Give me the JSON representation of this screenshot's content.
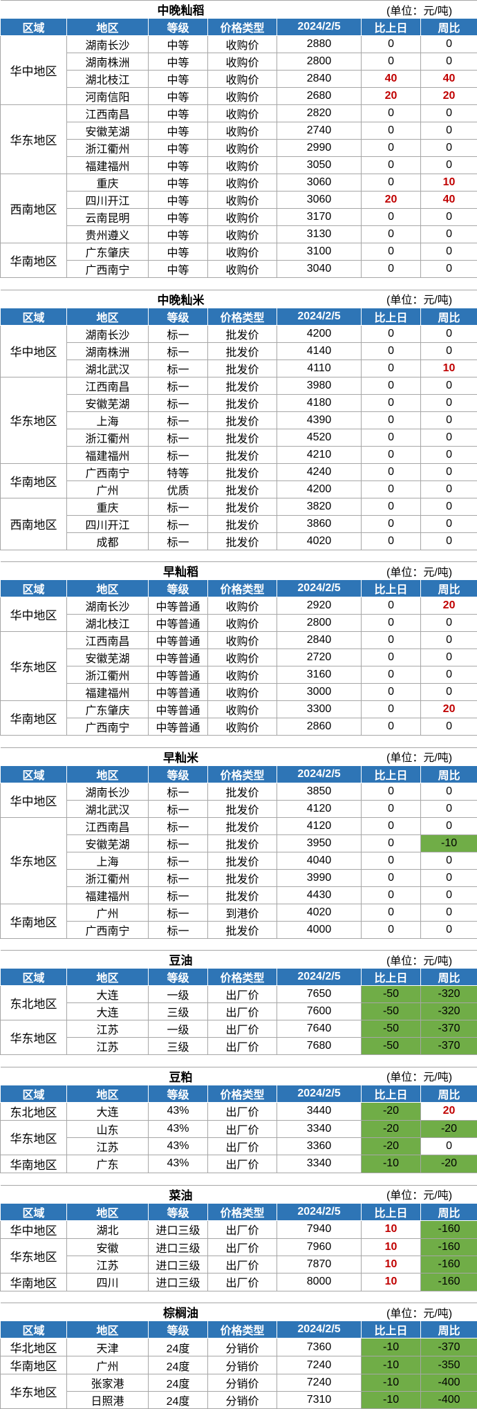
{
  "sections": [
    {
      "title": "中晚籼稻",
      "unit": "(单位：元/吨)",
      "header": [
        "区域",
        "地区",
        "等级",
        "价格类型",
        "2024/2/5",
        "比上日",
        "周比"
      ],
      "groups": [
        {
          "region": "华中地区",
          "rows": [
            [
              "湖南长沙",
              "中等",
              "收购价",
              2880,
              0,
              0
            ],
            [
              "湖南株洲",
              "中等",
              "收购价",
              2800,
              0,
              0
            ],
            [
              "湖北枝江",
              "中等",
              "收购价",
              2840,
              40,
              40
            ],
            [
              "河南信阳",
              "中等",
              "收购价",
              2680,
              20,
              20
            ]
          ]
        },
        {
          "region": "华东地区",
          "rows": [
            [
              "江西南昌",
              "中等",
              "收购价",
              2820,
              0,
              0
            ],
            [
              "安徽芜湖",
              "中等",
              "收购价",
              2740,
              0,
              0
            ],
            [
              "浙江衢州",
              "中等",
              "收购价",
              2990,
              0,
              0
            ],
            [
              "福建福州",
              "中等",
              "收购价",
              3050,
              0,
              0
            ]
          ]
        },
        {
          "region": "西南地区",
          "rows": [
            [
              "重庆",
              "中等",
              "收购价",
              3060,
              0,
              10
            ],
            [
              "四川开江",
              "中等",
              "收购价",
              3060,
              20,
              40
            ],
            [
              "云南昆明",
              "中等",
              "收购价",
              3170,
              0,
              0
            ],
            [
              "贵州遵义",
              "中等",
              "收购价",
              3130,
              0,
              0
            ]
          ]
        },
        {
          "region": "华南地区",
          "rows": [
            [
              "广东肇庆",
              "中等",
              "收购价",
              3100,
              0,
              0
            ],
            [
              "广西南宁",
              "中等",
              "收购价",
              3040,
              0,
              0
            ]
          ]
        }
      ]
    },
    {
      "title": "中晚籼米",
      "unit": "(单位：元/吨)",
      "header": [
        "区域",
        "地区",
        "等级",
        "价格类型",
        "2024/2/5",
        "比上日",
        "周比"
      ],
      "groups": [
        {
          "region": "华中地区",
          "rows": [
            [
              "湖南长沙",
              "标一",
              "批发价",
              4200,
              0,
              0
            ],
            [
              "湖南株洲",
              "标一",
              "批发价",
              4140,
              0,
              0
            ],
            [
              "湖北武汉",
              "标一",
              "批发价",
              4110,
              0,
              10
            ]
          ]
        },
        {
          "region": "华东地区",
          "rows": [
            [
              "江西南昌",
              "标一",
              "批发价",
              3980,
              0,
              0
            ],
            [
              "安徽芜湖",
              "标一",
              "批发价",
              4180,
              0,
              0
            ],
            [
              "上海",
              "标一",
              "批发价",
              4390,
              0,
              0
            ],
            [
              "浙江衢州",
              "标一",
              "批发价",
              4520,
              0,
              0
            ],
            [
              "福建福州",
              "标一",
              "批发价",
              4210,
              0,
              0
            ]
          ]
        },
        {
          "region": "华南地区",
          "rows": [
            [
              "广西南宁",
              "特等",
              "批发价",
              4240,
              0,
              0
            ],
            [
              "广州",
              "优质",
              "批发价",
              4200,
              0,
              0
            ]
          ]
        },
        {
          "region": "西南地区",
          "rows": [
            [
              "重庆",
              "标一",
              "批发价",
              3820,
              0,
              0
            ],
            [
              "四川开江",
              "标一",
              "批发价",
              3860,
              0,
              0
            ],
            [
              "成都",
              "标一",
              "批发价",
              4020,
              0,
              0
            ]
          ]
        }
      ]
    },
    {
      "title": "早籼稻",
      "unit": "(单位：元/吨)",
      "header": [
        "区域",
        "地区",
        "等级",
        "价格类型",
        "2024/2/5",
        "比上日",
        "周比"
      ],
      "groups": [
        {
          "region": "华中地区",
          "rows": [
            [
              "湖南长沙",
              "中等普通",
              "收购价",
              2920,
              0,
              20
            ],
            [
              "湖北枝江",
              "中等普通",
              "收购价",
              2800,
              0,
              0
            ]
          ]
        },
        {
          "region": "华东地区",
          "rows": [
            [
              "江西南昌",
              "中等普通",
              "收购价",
              2840,
              0,
              0
            ],
            [
              "安徽芜湖",
              "中等普通",
              "收购价",
              2720,
              0,
              0
            ],
            [
              "浙江衢州",
              "中等普通",
              "收购价",
              3160,
              0,
              0
            ],
            [
              "福建福州",
              "中等普通",
              "收购价",
              3000,
              0,
              0
            ]
          ]
        },
        {
          "region": "华南地区",
          "rows": [
            [
              "广东肇庆",
              "中等普通",
              "收购价",
              3300,
              0,
              20
            ],
            [
              "广西南宁",
              "中等普通",
              "收购价",
              2860,
              0,
              0
            ]
          ]
        }
      ]
    },
    {
      "title": "早籼米",
      "unit": "(单位：元/吨)",
      "header": [
        "区域",
        "地区",
        "等级",
        "价格类型",
        "2024/2/5",
        "比上日",
        "周比"
      ],
      "groups": [
        {
          "region": "华中地区",
          "rows": [
            [
              "湖南长沙",
              "标一",
              "批发价",
              3850,
              0,
              0
            ],
            [
              "湖北武汉",
              "标一",
              "批发价",
              4120,
              0,
              0
            ]
          ]
        },
        {
          "region": "华东地区",
          "rows": [
            [
              "江西南昌",
              "标一",
              "批发价",
              4120,
              0,
              0
            ],
            [
              "安徽芜湖",
              "标一",
              "批发价",
              3950,
              0,
              -10
            ],
            [
              "上海",
              "标一",
              "批发价",
              4040,
              0,
              0
            ],
            [
              "浙江衢州",
              "标一",
              "批发价",
              3990,
              0,
              0
            ],
            [
              "福建福州",
              "标一",
              "批发价",
              4430,
              0,
              0
            ]
          ]
        },
        {
          "region": "华南地区",
          "rows": [
            [
              "广州",
              "标一",
              "到港价",
              4020,
              0,
              0
            ],
            [
              "广西南宁",
              "标一",
              "批发价",
              4000,
              0,
              0
            ]
          ]
        }
      ]
    },
    {
      "title": "豆油",
      "unit": "(单位：元/吨)",
      "header": [
        "区域",
        "地区",
        "等级",
        "价格类型",
        "2024/2/5",
        "比上日",
        "周比"
      ],
      "groups": [
        {
          "region": "东北地区",
          "rows": [
            [
              "大连",
              "一级",
              "出厂价",
              7650,
              -50,
              -320
            ],
            [
              "大连",
              "三级",
              "出厂价",
              7600,
              -50,
              -320
            ]
          ]
        },
        {
          "region": "华东地区",
          "rows": [
            [
              "江苏",
              "一级",
              "出厂价",
              7640,
              -50,
              -370
            ],
            [
              "江苏",
              "三级",
              "出厂价",
              7680,
              -50,
              -370
            ]
          ]
        }
      ]
    },
    {
      "title": "豆粕",
      "unit": "(单位：元/吨)",
      "header": [
        "区域",
        "地区",
        "等级",
        "价格类型",
        "2024/2/5",
        "比上日",
        "周比"
      ],
      "groups": [
        {
          "region": "东北地区",
          "rows": [
            [
              "大连",
              "43%",
              "出厂价",
              3440,
              -20,
              20
            ]
          ]
        },
        {
          "region": "华东地区",
          "rows": [
            [
              "山东",
              "43%",
              "出厂价",
              3340,
              -20,
              -20
            ],
            [
              "江苏",
              "43%",
              "出厂价",
              3360,
              -20,
              0
            ]
          ]
        },
        {
          "region": "华南地区",
          "rows": [
            [
              "广东",
              "43%",
              "出厂价",
              3340,
              -10,
              -20
            ]
          ]
        }
      ]
    },
    {
      "title": "菜油",
      "unit": "(单位：元/吨)",
      "header": [
        "区域",
        "地区",
        "等级",
        "价格类型",
        "2024/2/5",
        "比上日",
        "周比"
      ],
      "groups": [
        {
          "region": "华中地区",
          "rows": [
            [
              "湖北",
              "进口三级",
              "出厂价",
              7940,
              10,
              -160
            ]
          ]
        },
        {
          "region": "华东地区",
          "rows": [
            [
              "安徽",
              "进口三级",
              "出厂价",
              7960,
              10,
              -160
            ],
            [
              "江苏",
              "进口三级",
              "出厂价",
              7870,
              10,
              -160
            ]
          ]
        },
        {
          "region": "华南地区",
          "rows": [
            [
              "四川",
              "进口三级",
              "出厂价",
              8000,
              10,
              -160
            ]
          ]
        }
      ]
    },
    {
      "title": "棕榈油",
      "unit": "(单位：元/吨)",
      "header": [
        "区域",
        "地区",
        "等级",
        "价格类型",
        "2024/2/5",
        "比上日",
        "周比"
      ],
      "groups": [
        {
          "region": "华北地区",
          "rows": [
            [
              "天津",
              "24度",
              "分销价",
              7360,
              -10,
              -370
            ]
          ]
        },
        {
          "region": "华南地区",
          "rows": [
            [
              "广州",
              "24度",
              "分销价",
              7240,
              -10,
              -350
            ]
          ]
        },
        {
          "region": "华东地区",
          "rows": [
            [
              "张家港",
              "24度",
              "分销价",
              7240,
              -10,
              -400
            ],
            [
              "日照港",
              "24度",
              "分销价",
              7310,
              -10,
              -400
            ]
          ]
        }
      ]
    }
  ]
}
